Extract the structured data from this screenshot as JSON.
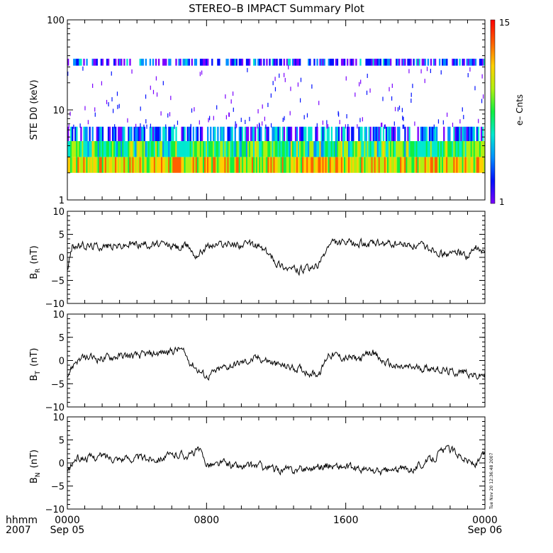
{
  "title": "STEREO–B IMPACT Summary Plot",
  "timestamp": "Tue Nov 20 12:36:48 2007",
  "colors": {
    "background": "#ffffff",
    "axes": "#000000",
    "trace": "#000000",
    "colormap": [
      "#7b00ff",
      "#0010ff",
      "#0090ff",
      "#00e8d0",
      "#10f040",
      "#b0f010",
      "#ffd000",
      "#ff6000",
      "#ff0000"
    ]
  },
  "x_axis": {
    "label_row1": "hhmm",
    "label_row2": "2007",
    "ticks": [
      {
        "top": "0000",
        "bottom": "Sep 05"
      },
      {
        "top": "0800",
        "bottom": ""
      },
      {
        "top": "1600",
        "bottom": ""
      },
      {
        "top": "0000",
        "bottom": "Sep 06"
      }
    ]
  },
  "chart_data": [
    {
      "type": "heatmap",
      "panel": "electron spectrogram",
      "ylabel": "STE D0 (keV)",
      "y_scale": "log",
      "ylim": [
        1,
        100
      ],
      "y_ticks": [
        "1",
        "10",
        "100"
      ],
      "xlim_hours": [
        0,
        24
      ],
      "colorbar": {
        "label": "e– Cnts",
        "min_label": "1",
        "max_label": "15",
        "range": [
          1,
          15
        ]
      },
      "energy_bands_keV": [
        [
          2.0,
          3.0
        ],
        [
          3.0,
          4.5
        ],
        [
          4.5,
          6.5
        ],
        [
          31.0,
          37.0
        ]
      ],
      "typical_counts": [
        11,
        8,
        4,
        3
      ],
      "sporadic_counts_range_keV": [
        6.5,
        30
      ]
    },
    {
      "type": "line",
      "panel": "BR",
      "ylabel_main": "B",
      "ylabel_sub": "R",
      "ylabel_unit": "(nT)",
      "ylim": [
        -10,
        10
      ],
      "y_ticks": [
        "10",
        "5",
        "0",
        "−5",
        "−10"
      ],
      "x_hours": [
        0,
        0.3,
        1,
        2,
        3,
        4,
        5,
        6,
        6.5,
        7,
        7.3,
        7.6,
        8,
        9,
        10,
        11,
        11.5,
        12,
        12.5,
        13,
        13.5,
        14,
        14.5,
        15,
        15.3,
        16,
        17,
        18,
        19,
        20,
        21,
        21.5,
        22,
        22.5,
        23,
        23.5,
        24
      ],
      "values": [
        -2.5,
        2.5,
        2.5,
        2.5,
        2.5,
        3.0,
        2.8,
        2.5,
        2.0,
        2.5,
        0.5,
        1.0,
        2.5,
        3.0,
        2.8,
        2.5,
        1.0,
        -1.0,
        -2.0,
        -2.6,
        -2.8,
        -2.5,
        -1.5,
        2.5,
        3.2,
        3.0,
        3.0,
        2.8,
        2.8,
        2.5,
        2.0,
        1.0,
        0.5,
        1.5,
        0.0,
        2.0,
        0.5
      ]
    },
    {
      "type": "line",
      "panel": "BT",
      "ylabel_main": "B",
      "ylabel_sub": "T",
      "ylabel_unit": "(nT)",
      "ylim": [
        -10,
        10
      ],
      "y_ticks": [
        "10",
        "5",
        "0",
        "−5",
        "−10"
      ],
      "x_hours": [
        0,
        0.5,
        1,
        2,
        3,
        4,
        5,
        6,
        6.5,
        7,
        7.5,
        8,
        9,
        10,
        11,
        11.5,
        12,
        13,
        14,
        14.5,
        15,
        16,
        17,
        17.5,
        18,
        19,
        20,
        21,
        22,
        23,
        23.5,
        24
      ],
      "values": [
        -3.0,
        0.0,
        0.5,
        0.5,
        1.0,
        1.0,
        1.5,
        2.0,
        2.5,
        0.0,
        -2.0,
        -3.5,
        -1.5,
        -0.5,
        0.5,
        0.0,
        -1.0,
        -1.5,
        -2.5,
        -3.0,
        1.5,
        0.5,
        0.5,
        2.0,
        0.0,
        -1.5,
        -1.5,
        -1.5,
        -2.5,
        -2.5,
        -3.5,
        -3.0
      ]
    },
    {
      "type": "line",
      "panel": "BN",
      "ylabel_main": "B",
      "ylabel_sub": "N",
      "ylabel_unit": "(nT)",
      "ylim": [
        -10,
        10
      ],
      "y_ticks": [
        "10",
        "5",
        "0",
        "−5",
        "−10"
      ],
      "x_hours": [
        0,
        0.5,
        1,
        2,
        3,
        4,
        5,
        6,
        6.5,
        7,
        7.5,
        8,
        8.5,
        9,
        10,
        11,
        12,
        13,
        14,
        15,
        16,
        17,
        18,
        19,
        20,
        21,
        21.5,
        22,
        22.5,
        23,
        23.5,
        24
      ],
      "values": [
        -2.0,
        1.0,
        1.0,
        1.5,
        1.0,
        1.0,
        1.0,
        1.5,
        2.0,
        1.5,
        3.0,
        0.0,
        -0.5,
        0.0,
        -1.0,
        -0.5,
        -1.5,
        -1.5,
        -1.0,
        -0.5,
        -1.0,
        -1.5,
        -2.0,
        -1.5,
        -1.0,
        1.0,
        2.5,
        3.0,
        2.0,
        0.5,
        -0.5,
        2.0
      ]
    }
  ]
}
